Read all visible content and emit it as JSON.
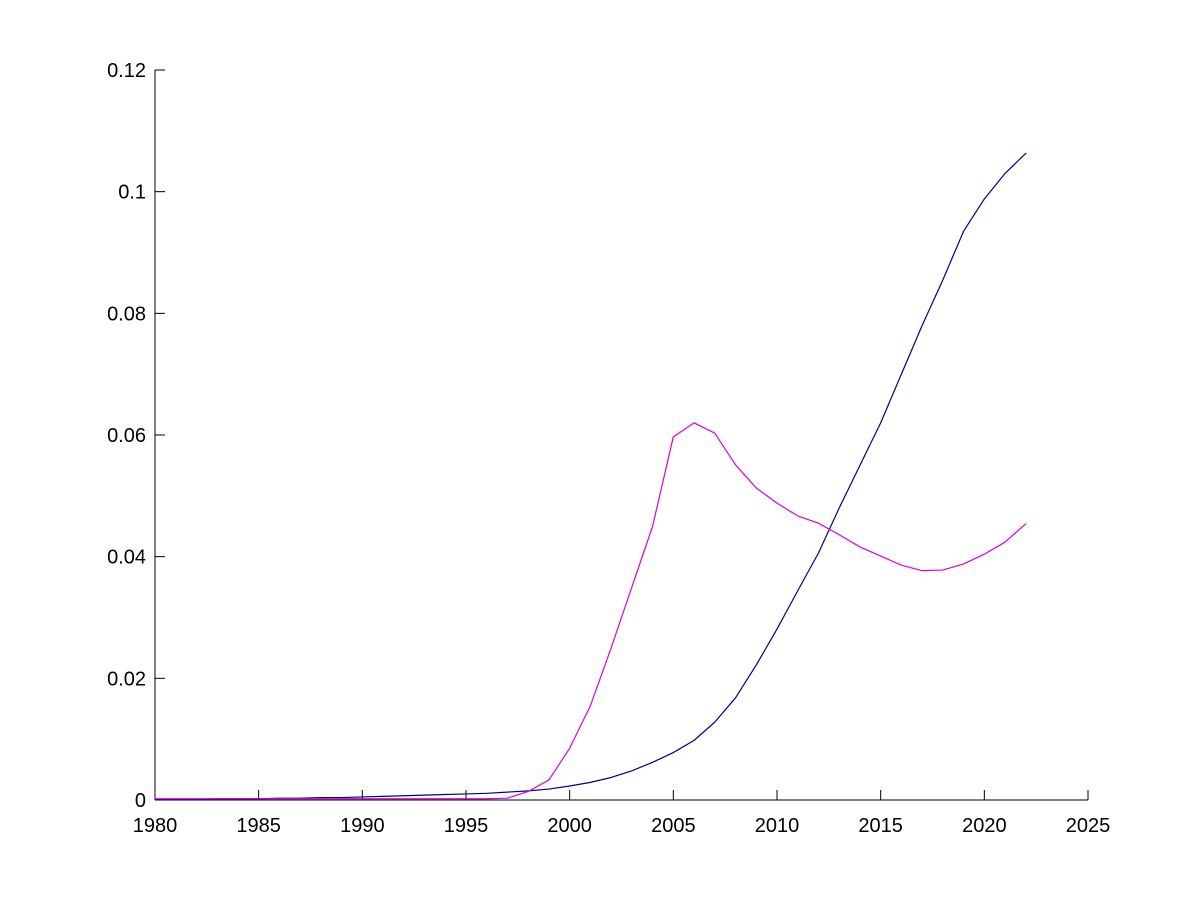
{
  "page": {
    "background": "#ffffff"
  },
  "chart_data": {
    "type": "line",
    "title": "",
    "xlabel": "",
    "ylabel": "",
    "xlim": [
      1980,
      2025
    ],
    "ylim": [
      0,
      0.12
    ],
    "xticks": [
      1980,
      1985,
      1990,
      1995,
      2000,
      2005,
      2010,
      2015,
      2020,
      2025
    ],
    "xtick_labels": [
      "1980",
      "1985",
      "1990",
      "1995",
      "2000",
      "2005",
      "2010",
      "2015",
      "2020",
      "2025"
    ],
    "yticks": [
      0,
      0.02,
      0.04,
      0.06,
      0.08,
      0.1,
      0.12
    ],
    "ytick_labels": [
      "0",
      "0.02",
      "0.04",
      "0.06",
      "0.08",
      "0.1",
      "0.12"
    ],
    "grid": false,
    "box": false,
    "tick_direction": "in",
    "legend_position": "none",
    "axis_color": "#000000",
    "x": [
      1980,
      1981,
      1982,
      1983,
      1984,
      1985,
      1986,
      1987,
      1988,
      1989,
      1990,
      1991,
      1992,
      1993,
      1994,
      1995,
      1996,
      1997,
      1998,
      1999,
      2000,
      2001,
      2002,
      2003,
      2004,
      2005,
      2006,
      2007,
      2008,
      2009,
      2010,
      2011,
      2012,
      2013,
      2014,
      2015,
      2016,
      2017,
      2018,
      2019,
      2020,
      2021,
      2022
    ],
    "series": [
      {
        "name": "dark-blue-line",
        "color": "#00008B",
        "values": [
          0.0001,
          0.0001,
          0.0001,
          0.0002,
          0.0002,
          0.0002,
          0.0003,
          0.0003,
          0.0004,
          0.0004,
          0.0005,
          0.0006,
          0.0007,
          0.0008,
          0.0009,
          0.001,
          0.0011,
          0.0013,
          0.0015,
          0.0018,
          0.0023,
          0.0029,
          0.0037,
          0.0048,
          0.0062,
          0.0078,
          0.0098,
          0.0128,
          0.0168,
          0.0222,
          0.0281,
          0.0344,
          0.0406,
          0.048,
          0.055,
          0.062,
          0.07,
          0.078,
          0.0855,
          0.0935,
          0.0988,
          0.103,
          0.1063
        ]
      },
      {
        "name": "magenta-line",
        "color": "#DD00DD",
        "values": [
          0.0002,
          0.0002,
          0.0002,
          0.0002,
          0.0002,
          0.0002,
          0.0002,
          0.0002,
          0.0002,
          0.0002,
          0.0002,
          0.0002,
          0.0002,
          0.0002,
          0.0002,
          0.0002,
          0.0002,
          0.0003,
          0.0014,
          0.0033,
          0.0085,
          0.0155,
          0.025,
          0.035,
          0.045,
          0.0597,
          0.062,
          0.0603,
          0.0551,
          0.0513,
          0.0488,
          0.0467,
          0.0455,
          0.0436,
          0.0416,
          0.0401,
          0.0386,
          0.0377,
          0.0378,
          0.0388,
          0.0404,
          0.0424,
          0.0454
        ]
      }
    ]
  }
}
